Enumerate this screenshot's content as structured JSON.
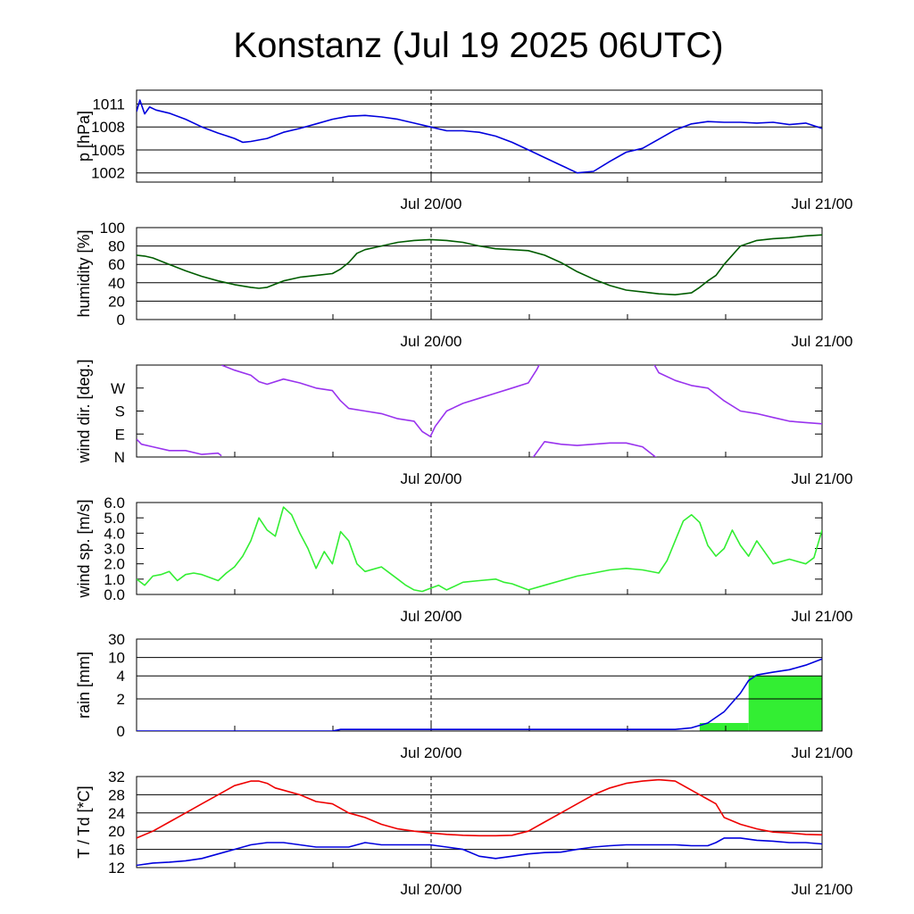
{
  "title": "Konstanz (Jul 19 2025 06UTC)",
  "x_tick_labels": [
    "Jul 20/00",
    "Jul 21/00"
  ],
  "colors": {
    "pressure": "#0000dd",
    "humidity": "#005c00",
    "wind_dir": "#9933ee",
    "wind_speed": "#33ee33",
    "rain_cum": "#0000dd",
    "rain_bar": "#33ee33",
    "temperature": "#ee0000",
    "dewpoint": "#0000dd"
  },
  "chart_data": [
    {
      "type": "line",
      "name": "pressure",
      "ylabel": "p [hPa]",
      "x_unit": "hours since Jul 19 06UTC",
      "xlim": [
        0,
        42
      ],
      "ylim": [
        1000.8,
        1012.8
      ],
      "yticks": [
        1002,
        1005,
        1008,
        1011
      ],
      "ytick_labels": [
        "1002",
        "1005",
        "1008",
        "1011"
      ],
      "grid": true,
      "series": [
        {
          "x": [
            0,
            0.2,
            0.5,
            0.8,
            1.2,
            2,
            3,
            4,
            5,
            6,
            6.5,
            7,
            8,
            9,
            10,
            11,
            12,
            13,
            14,
            15,
            16,
            17,
            18,
            19,
            20,
            21,
            22,
            23,
            24,
            25,
            26,
            27,
            28,
            29,
            30,
            31,
            32,
            33,
            34,
            35,
            36,
            37,
            38,
            39,
            40,
            41,
            42
          ],
          "y": [
            1010,
            1011.5,
            1009.7,
            1010.6,
            1010.2,
            1009.8,
            1009,
            1008,
            1007.2,
            1006.5,
            1006,
            1006.1,
            1006.5,
            1007.3,
            1007.8,
            1008.4,
            1009,
            1009.4,
            1009.5,
            1009.3,
            1009,
            1008.5,
            1008,
            1007.5,
            1007.5,
            1007.3,
            1006.8,
            1006,
            1005,
            1004,
            1003,
            1002,
            1002.2,
            1003.5,
            1004.7,
            1005.2,
            1006.4,
            1007.6,
            1008.4,
            1008.7,
            1008.6,
            1008.6,
            1008.5,
            1008.6,
            1008.3,
            1008.5,
            1007.8
          ]
        }
      ]
    },
    {
      "type": "line",
      "name": "humidity",
      "ylabel": "humidity [%]",
      "x_unit": "hours since Jul 19 06UTC",
      "xlim": [
        0,
        42
      ],
      "ylim": [
        0,
        100
      ],
      "yticks": [
        0,
        20,
        40,
        60,
        80,
        100
      ],
      "ytick_labels": [
        "0",
        "20",
        "40",
        "60",
        "80",
        "100"
      ],
      "grid": true,
      "series": [
        {
          "x": [
            0,
            0.5,
            1,
            2,
            3,
            4,
            5,
            6,
            7,
            7.5,
            8,
            9,
            10,
            11,
            12,
            12.5,
            13,
            13.5,
            14,
            15,
            16,
            17,
            18,
            19,
            20,
            21,
            22,
            23,
            24,
            25,
            26,
            27,
            28,
            29,
            30,
            31,
            32,
            33,
            34,
            34.5,
            35,
            35.5,
            36,
            37,
            38,
            39,
            40,
            41,
            42
          ],
          "y": [
            70,
            69,
            67,
            60,
            53,
            47,
            42,
            38,
            35,
            34,
            35,
            42,
            46,
            48,
            50,
            55,
            62,
            72,
            76,
            80,
            84,
            86,
            87,
            86,
            84,
            80,
            77,
            76,
            75,
            70,
            62,
            52,
            44,
            37,
            32,
            30,
            28,
            27,
            29,
            35,
            42,
            48,
            60,
            80,
            86,
            88,
            89,
            91,
            92
          ]
        }
      ]
    },
    {
      "type": "line",
      "name": "wind_direction",
      "ylabel": "wind dir. [deg.]",
      "x_unit": "hours since Jul 19 06UTC",
      "xlim": [
        0,
        42
      ],
      "ylim": [
        0,
        360
      ],
      "yticks": [
        0,
        90,
        180,
        270
      ],
      "ytick_labels": [
        "N",
        "E",
        "S",
        "W"
      ],
      "grid": false,
      "series": [
        {
          "x": [
            0,
            0.3,
            1,
            2,
            3,
            4,
            5,
            5.2
          ],
          "y": [
            70,
            50,
            40,
            25,
            25,
            10,
            15,
            5
          ]
        },
        {
          "x": [
            5.2,
            6,
            7,
            7.5,
            8,
            9,
            10,
            11,
            12,
            12.5,
            13,
            14,
            15,
            16,
            17,
            17.5,
            18,
            18.3,
            19,
            20,
            21,
            22,
            23,
            24,
            24.5,
            25
          ],
          "y": [
            360,
            340,
            320,
            295,
            285,
            305,
            290,
            270,
            260,
            220,
            190,
            180,
            170,
            150,
            140,
            100,
            80,
            120,
            180,
            210,
            230,
            250,
            270,
            290,
            340,
            400
          ]
        },
        {
          "x": [
            24.2,
            25,
            26,
            27,
            28,
            29,
            30,
            31,
            32
          ],
          "y": [
            -10,
            60,
            50,
            45,
            50,
            55,
            55,
            40,
            -10
          ]
        },
        {
          "x": [
            31.2,
            32,
            33,
            34,
            35,
            36,
            37,
            38,
            39,
            40,
            41,
            42
          ],
          "y": [
            420,
            330,
            300,
            280,
            270,
            220,
            180,
            170,
            155,
            140,
            135,
            130
          ]
        }
      ]
    },
    {
      "type": "line",
      "name": "wind_speed",
      "ylabel": "wind sp. [m/s]",
      "x_unit": "hours since Jul 19 06UTC",
      "xlim": [
        0,
        42
      ],
      "ylim": [
        0,
        6
      ],
      "yticks": [
        0,
        1,
        2,
        3,
        4,
        5,
        6
      ],
      "ytick_labels": [
        "0.0",
        "1.0",
        "2.0",
        "3.0",
        "4.0",
        "5.0",
        "6.0"
      ],
      "grid": false,
      "series": [
        {
          "x": [
            0,
            0.5,
            1,
            1.5,
            2,
            2.5,
            3,
            3.5,
            4,
            4.5,
            5,
            5.5,
            6,
            6.5,
            7,
            7.5,
            8,
            8.5,
            9,
            9.5,
            10,
            10.5,
            11,
            11.5,
            12,
            12.5,
            13,
            13.5,
            14,
            15,
            16,
            16.5,
            17,
            17.5,
            18,
            18.5,
            19,
            20,
            21,
            22,
            22.5,
            23,
            24,
            25,
            26,
            27,
            28,
            29,
            30,
            31,
            32,
            32.5,
            33,
            33.5,
            34,
            34.5,
            35,
            35.5,
            36,
            36.5,
            37,
            37.5,
            38,
            39,
            40,
            41,
            41.5,
            42
          ],
          "y": [
            1.0,
            0.6,
            1.2,
            1.3,
            1.5,
            0.9,
            1.3,
            1.4,
            1.3,
            1.1,
            0.9,
            1.4,
            1.8,
            2.5,
            3.5,
            5.0,
            4.2,
            3.8,
            5.7,
            5.2,
            4.0,
            3.0,
            1.7,
            2.8,
            2.0,
            4.1,
            3.5,
            2.0,
            1.5,
            1.8,
            1.0,
            0.6,
            0.3,
            0.2,
            0.4,
            0.6,
            0.3,
            0.8,
            0.9,
            1.0,
            0.8,
            0.7,
            0.3,
            0.6,
            0.9,
            1.2,
            1.4,
            1.6,
            1.7,
            1.6,
            1.4,
            2.2,
            3.5,
            4.8,
            5.2,
            4.7,
            3.2,
            2.5,
            3.0,
            4.2,
            3.2,
            2.5,
            3.5,
            2.0,
            2.3,
            2.0,
            2.4,
            4.2
          ]
        }
      ]
    },
    {
      "type": "area",
      "name": "rain",
      "ylabel": "rain [mm]",
      "x_unit": "hours since Jul 19 06UTC",
      "xlim": [
        0,
        42
      ],
      "ylim": [
        0,
        30
      ],
      "yticks": [
        0,
        2,
        4,
        10,
        30
      ],
      "ytick_labels": [
        "0",
        "2",
        "4",
        "10",
        "30"
      ],
      "grid": true,
      "bars": [
        {
          "x0": 34.5,
          "x1": 37.5,
          "value": 0.5
        },
        {
          "x0": 37.5,
          "x1": 42,
          "value": 4
        }
      ],
      "series": [
        {
          "x": [
            0,
            12,
            12.5,
            33,
            34,
            35,
            36,
            37,
            37.5,
            38,
            39,
            40,
            41,
            42
          ],
          "y": [
            0,
            0,
            0.1,
            0.1,
            0.2,
            0.5,
            1.2,
            2.5,
            3.6,
            4.3,
            5.2,
            6.0,
            7.5,
            9.5
          ]
        }
      ]
    },
    {
      "type": "line",
      "name": "temperature_dewpoint",
      "ylabel": "T / Td [*C]",
      "x_unit": "hours since Jul 19 06UTC",
      "xlim": [
        0,
        42
      ],
      "ylim": [
        12,
        32
      ],
      "yticks": [
        12,
        16,
        20,
        24,
        28,
        32
      ],
      "ytick_labels": [
        "12",
        "16",
        "20",
        "24",
        "28",
        "32"
      ],
      "grid": true,
      "series": [
        {
          "x": [
            0,
            1,
            2,
            3,
            4,
            5,
            6,
            7,
            7.5,
            8,
            8.5,
            9,
            10,
            11,
            12,
            12.5,
            13,
            14,
            15,
            16,
            17,
            18,
            19,
            20,
            21,
            22,
            23,
            24,
            25,
            26,
            27,
            28,
            29,
            30,
            31,
            32,
            33,
            34,
            35,
            35.5,
            36,
            37,
            38,
            39,
            40,
            41,
            42
          ],
          "y": [
            18.5,
            20,
            22,
            24,
            26,
            28,
            30,
            31,
            31,
            30.5,
            29.5,
            29,
            28,
            26.5,
            26,
            25,
            24,
            23,
            21.5,
            20.5,
            20,
            19.6,
            19.3,
            19.1,
            19,
            19,
            19.1,
            20,
            22,
            24,
            26,
            28,
            29.5,
            30.5,
            31,
            31.3,
            31,
            29,
            27,
            26,
            23,
            21.5,
            20.5,
            19.8,
            19.6,
            19.3,
            19.2
          ]
        },
        {
          "x": [
            0,
            1,
            2,
            3,
            4,
            5,
            6,
            7,
            8,
            9,
            10,
            11,
            12,
            13,
            14,
            15,
            16,
            17,
            18,
            19,
            20,
            21,
            22,
            23,
            24,
            25,
            26,
            27,
            28,
            29,
            30,
            31,
            32,
            33,
            34,
            35,
            35.5,
            36,
            37,
            38,
            39,
            40,
            41,
            42
          ],
          "y": [
            12.5,
            13,
            13.2,
            13.5,
            14,
            15,
            16,
            17,
            17.5,
            17.5,
            17,
            16.5,
            16.5,
            16.5,
            17.5,
            17,
            17,
            17,
            17,
            16.5,
            16,
            14.5,
            14,
            14.5,
            15,
            15.3,
            15.4,
            16,
            16.5,
            16.8,
            17,
            17,
            17,
            17,
            16.8,
            16.8,
            17.5,
            18.5,
            18.5,
            18,
            17.8,
            17.5,
            17.5,
            17.2
          ]
        }
      ]
    }
  ]
}
